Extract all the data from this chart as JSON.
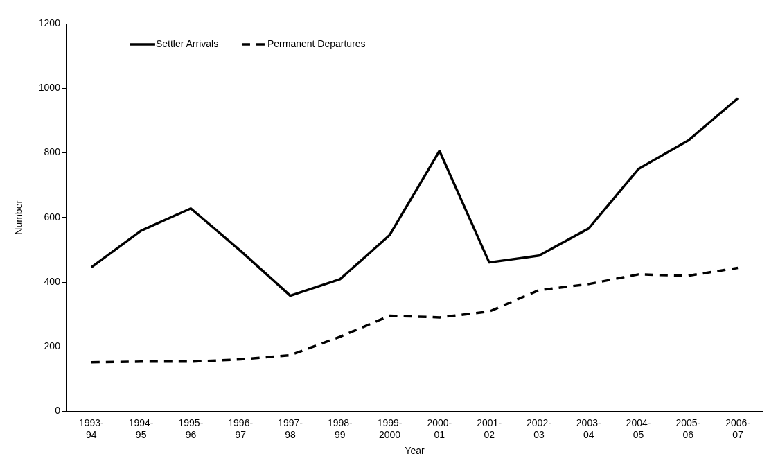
{
  "chart_data": {
    "type": "line",
    "xlabel": "Year",
    "ylabel": "Number",
    "categories": [
      "1993-94",
      "1994-95",
      "1995-96",
      "1996-97",
      "1997-98",
      "1998-99",
      "1999-2000",
      "2000-01",
      "2001-02",
      "2002-03",
      "2003-04",
      "2004-05",
      "2005-06",
      "2006-07"
    ],
    "series": [
      {
        "name": "Settler Arrivals",
        "color": "#000000",
        "line_style": "solid",
        "values": [
          446,
          559,
          628,
          497,
          358,
          409,
          546,
          806,
          461,
          482,
          566,
          750,
          838,
          969
        ]
      },
      {
        "name": "Permanent Departures",
        "color": "#000000",
        "line_style": "dashed",
        "values": [
          152,
          154,
          154,
          161,
          174,
          231,
          296,
          291,
          309,
          375,
          394,
          424,
          420,
          444
        ]
      }
    ],
    "ylim": [
      0,
      1200
    ],
    "yticks": [
      0,
      200,
      400,
      600,
      800,
      1000,
      1200
    ],
    "grid": false,
    "legend": "top left",
    "marker": "none"
  }
}
